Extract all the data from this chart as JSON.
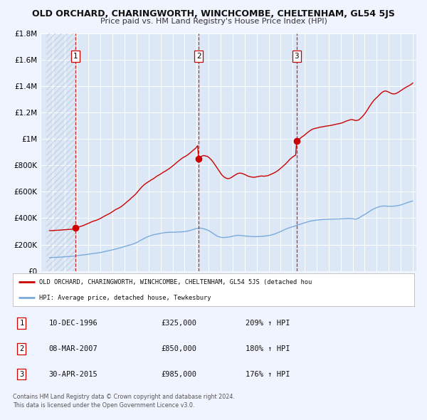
{
  "title": "OLD ORCHARD, CHARINGWORTH, WINCHCOMBE, CHELTENHAM, GL54 5JS",
  "subtitle": "Price paid vs. HM Land Registry's House Price Index (HPI)",
  "background_color": "#f0f4ff",
  "plot_bg_color": "#dce8f5",
  "grid_color": "#ffffff",
  "ylim": [
    0,
    1800000
  ],
  "yticks": [
    0,
    200000,
    400000,
    600000,
    800000,
    1000000,
    1200000,
    1400000,
    1600000,
    1800000
  ],
  "ytick_labels": [
    "£0",
    "£200K",
    "£400K",
    "£600K",
    "£800K",
    "£1M",
    "£1.2M",
    "£1.4M",
    "£1.6M",
    "£1.8M"
  ],
  "sale_color": "#cc0000",
  "hpi_color": "#7aaadd",
  "sale_label": "OLD ORCHARD, CHARINGWORTH, WINCHCOMBE, CHELTENHAM, GL54 5JS (detached hou",
  "hpi_label": "HPI: Average price, detached house, Tewkesbury",
  "marker_color": "#cc0000",
  "dashed_line_color": "#cc0000",
  "sale_positions": [
    [
      1996.917,
      325000,
      "1"
    ],
    [
      2007.167,
      850000,
      "2"
    ],
    [
      2015.333,
      985000,
      "3"
    ]
  ],
  "table_rows": [
    {
      "num": "1",
      "date": "10-DEC-1996",
      "price": "£325,000",
      "hpi": "209% ↑ HPI"
    },
    {
      "num": "2",
      "date": "08-MAR-2007",
      "price": "£850,000",
      "hpi": "180% ↑ HPI"
    },
    {
      "num": "3",
      "date": "30-APR-2015",
      "price": "£985,000",
      "hpi": "176% ↑ HPI"
    }
  ],
  "footer_line1": "Contains HM Land Registry data © Crown copyright and database right 2024.",
  "footer_line2": "This data is licensed under the Open Government Licence v3.0.",
  "hpi_curve": [
    [
      1994.75,
      100000
    ],
    [
      1995.0,
      102000
    ],
    [
      1995.25,
      103000
    ],
    [
      1995.5,
      104000
    ],
    [
      1995.75,
      105000
    ],
    [
      1996.0,
      107000
    ],
    [
      1996.25,
      109000
    ],
    [
      1996.5,
      110000
    ],
    [
      1996.75,
      112000
    ],
    [
      1997.0,
      115000
    ],
    [
      1997.25,
      118000
    ],
    [
      1997.5,
      121000
    ],
    [
      1997.75,
      123000
    ],
    [
      1998.0,
      127000
    ],
    [
      1998.25,
      130000
    ],
    [
      1998.5,
      133000
    ],
    [
      1998.75,
      136000
    ],
    [
      1999.0,
      140000
    ],
    [
      1999.25,
      145000
    ],
    [
      1999.5,
      150000
    ],
    [
      1999.75,
      155000
    ],
    [
      2000.0,
      160000
    ],
    [
      2000.25,
      166000
    ],
    [
      2000.5,
      172000
    ],
    [
      2000.75,
      178000
    ],
    [
      2001.0,
      185000
    ],
    [
      2001.25,
      192000
    ],
    [
      2001.5,
      198000
    ],
    [
      2001.75,
      205000
    ],
    [
      2002.0,
      215000
    ],
    [
      2002.25,
      228000
    ],
    [
      2002.5,
      240000
    ],
    [
      2002.75,
      252000
    ],
    [
      2003.0,
      262000
    ],
    [
      2003.25,
      270000
    ],
    [
      2003.5,
      276000
    ],
    [
      2003.75,
      280000
    ],
    [
      2004.0,
      285000
    ],
    [
      2004.25,
      289000
    ],
    [
      2004.5,
      292000
    ],
    [
      2004.75,
      293000
    ],
    [
      2005.0,
      293000
    ],
    [
      2005.25,
      294000
    ],
    [
      2005.5,
      295000
    ],
    [
      2005.75,
      296000
    ],
    [
      2006.0,
      298000
    ],
    [
      2006.25,
      302000
    ],
    [
      2006.5,
      308000
    ],
    [
      2006.75,
      315000
    ],
    [
      2007.0,
      322000
    ],
    [
      2007.25,
      325000
    ],
    [
      2007.5,
      322000
    ],
    [
      2007.75,
      315000
    ],
    [
      2008.0,
      306000
    ],
    [
      2008.25,
      292000
    ],
    [
      2008.5,
      276000
    ],
    [
      2008.75,
      262000
    ],
    [
      2009.0,
      255000
    ],
    [
      2009.25,
      253000
    ],
    [
      2009.5,
      255000
    ],
    [
      2009.75,
      258000
    ],
    [
      2010.0,
      263000
    ],
    [
      2010.25,
      268000
    ],
    [
      2010.5,
      270000
    ],
    [
      2010.75,
      268000
    ],
    [
      2011.0,
      265000
    ],
    [
      2011.25,
      263000
    ],
    [
      2011.5,
      261000
    ],
    [
      2011.75,
      260000
    ],
    [
      2012.0,
      260000
    ],
    [
      2012.25,
      261000
    ],
    [
      2012.5,
      263000
    ],
    [
      2012.75,
      265000
    ],
    [
      2013.0,
      268000
    ],
    [
      2013.25,
      273000
    ],
    [
      2013.5,
      280000
    ],
    [
      2013.75,
      289000
    ],
    [
      2014.0,
      299000
    ],
    [
      2014.25,
      310000
    ],
    [
      2014.5,
      320000
    ],
    [
      2014.75,
      328000
    ],
    [
      2015.0,
      335000
    ],
    [
      2015.25,
      342000
    ],
    [
      2015.5,
      350000
    ],
    [
      2015.75,
      358000
    ],
    [
      2016.0,
      365000
    ],
    [
      2016.25,
      372000
    ],
    [
      2016.5,
      378000
    ],
    [
      2016.75,
      382000
    ],
    [
      2017.0,
      385000
    ],
    [
      2017.25,
      388000
    ],
    [
      2017.5,
      390000
    ],
    [
      2017.75,
      391000
    ],
    [
      2018.0,
      392000
    ],
    [
      2018.25,
      393000
    ],
    [
      2018.5,
      394000
    ],
    [
      2018.75,
      394000
    ],
    [
      2019.0,
      395000
    ],
    [
      2019.25,
      396000
    ],
    [
      2019.5,
      397000
    ],
    [
      2019.75,
      398000
    ],
    [
      2020.0,
      396000
    ],
    [
      2020.25,
      392000
    ],
    [
      2020.5,
      400000
    ],
    [
      2020.75,
      415000
    ],
    [
      2021.0,
      428000
    ],
    [
      2021.25,
      442000
    ],
    [
      2021.5,
      458000
    ],
    [
      2021.75,
      470000
    ],
    [
      2022.0,
      480000
    ],
    [
      2022.25,
      488000
    ],
    [
      2022.5,
      492000
    ],
    [
      2022.75,
      492000
    ],
    [
      2023.0,
      490000
    ],
    [
      2023.25,
      490000
    ],
    [
      2023.5,
      492000
    ],
    [
      2023.75,
      495000
    ],
    [
      2024.0,
      500000
    ],
    [
      2024.25,
      508000
    ],
    [
      2024.5,
      516000
    ],
    [
      2024.75,
      524000
    ],
    [
      2025.0,
      530000
    ]
  ],
  "red_curve": [
    [
      1994.75,
      305000
    ],
    [
      1994.917,
      306000
    ],
    [
      1995.083,
      307500
    ],
    [
      1995.25,
      308000
    ],
    [
      1995.417,
      308500
    ],
    [
      1995.583,
      309000
    ],
    [
      1995.75,
      310000
    ],
    [
      1995.917,
      312000
    ],
    [
      1996.083,
      313000
    ],
    [
      1996.25,
      314000
    ],
    [
      1996.417,
      315000
    ],
    [
      1996.583,
      316000
    ],
    [
      1996.75,
      318000
    ],
    [
      1996.917,
      325000
    ],
    [
      1997.083,
      328000
    ],
    [
      1997.25,
      335000
    ],
    [
      1997.417,
      340000
    ],
    [
      1997.583,
      345000
    ],
    [
      1997.75,
      352000
    ],
    [
      1997.917,
      358000
    ],
    [
      1998.083,
      365000
    ],
    [
      1998.25,
      372000
    ],
    [
      1998.417,
      378000
    ],
    [
      1998.583,
      382000
    ],
    [
      1998.75,
      388000
    ],
    [
      1998.917,
      395000
    ],
    [
      1999.083,
      403000
    ],
    [
      1999.25,
      412000
    ],
    [
      1999.417,
      420000
    ],
    [
      1999.583,
      428000
    ],
    [
      1999.75,
      435000
    ],
    [
      1999.917,
      445000
    ],
    [
      2000.083,
      455000
    ],
    [
      2000.25,
      465000
    ],
    [
      2000.417,
      472000
    ],
    [
      2000.583,
      480000
    ],
    [
      2000.75,
      490000
    ],
    [
      2000.917,
      502000
    ],
    [
      2001.083,
      515000
    ],
    [
      2001.25,
      528000
    ],
    [
      2001.417,
      540000
    ],
    [
      2001.583,
      555000
    ],
    [
      2001.75,
      568000
    ],
    [
      2001.917,
      582000
    ],
    [
      2002.083,
      600000
    ],
    [
      2002.25,
      618000
    ],
    [
      2002.417,
      635000
    ],
    [
      2002.583,
      650000
    ],
    [
      2002.75,
      662000
    ],
    [
      2002.917,
      672000
    ],
    [
      2003.083,
      682000
    ],
    [
      2003.25,
      692000
    ],
    [
      2003.417,
      700000
    ],
    [
      2003.583,
      712000
    ],
    [
      2003.75,
      722000
    ],
    [
      2003.917,
      730000
    ],
    [
      2004.083,
      740000
    ],
    [
      2004.25,
      750000
    ],
    [
      2004.417,
      758000
    ],
    [
      2004.583,
      768000
    ],
    [
      2004.75,
      778000
    ],
    [
      2004.917,
      790000
    ],
    [
      2005.083,
      802000
    ],
    [
      2005.25,
      815000
    ],
    [
      2005.417,
      828000
    ],
    [
      2005.583,
      840000
    ],
    [
      2005.75,
      852000
    ],
    [
      2005.917,
      862000
    ],
    [
      2006.083,
      870000
    ],
    [
      2006.25,
      880000
    ],
    [
      2006.417,
      892000
    ],
    [
      2006.583,
      905000
    ],
    [
      2006.75,
      918000
    ],
    [
      2006.917,
      930000
    ],
    [
      2007.0,
      940000
    ],
    [
      2007.083,
      950000
    ],
    [
      2007.167,
      850000
    ],
    [
      2007.25,
      855000
    ],
    [
      2007.417,
      870000
    ],
    [
      2007.583,
      875000
    ],
    [
      2007.75,
      872000
    ],
    [
      2007.917,
      868000
    ],
    [
      2008.083,
      855000
    ],
    [
      2008.25,
      840000
    ],
    [
      2008.417,
      820000
    ],
    [
      2008.583,
      798000
    ],
    [
      2008.75,
      775000
    ],
    [
      2008.917,
      752000
    ],
    [
      2009.083,
      730000
    ],
    [
      2009.25,
      715000
    ],
    [
      2009.417,
      705000
    ],
    [
      2009.583,
      700000
    ],
    [
      2009.75,
      702000
    ],
    [
      2009.917,
      710000
    ],
    [
      2010.083,
      720000
    ],
    [
      2010.25,
      730000
    ],
    [
      2010.417,
      738000
    ],
    [
      2010.583,
      742000
    ],
    [
      2010.75,
      740000
    ],
    [
      2010.917,
      735000
    ],
    [
      2011.083,
      728000
    ],
    [
      2011.25,
      720000
    ],
    [
      2011.417,
      715000
    ],
    [
      2011.583,
      712000
    ],
    [
      2011.75,
      710000
    ],
    [
      2011.917,
      712000
    ],
    [
      2012.083,
      715000
    ],
    [
      2012.25,
      718000
    ],
    [
      2012.417,
      720000
    ],
    [
      2012.583,
      718000
    ],
    [
      2012.75,
      720000
    ],
    [
      2012.917,
      722000
    ],
    [
      2013.083,
      728000
    ],
    [
      2013.25,
      735000
    ],
    [
      2013.417,
      742000
    ],
    [
      2013.583,
      750000
    ],
    [
      2013.75,
      760000
    ],
    [
      2013.917,
      772000
    ],
    [
      2014.083,
      785000
    ],
    [
      2014.25,
      798000
    ],
    [
      2014.417,
      812000
    ],
    [
      2014.583,
      828000
    ],
    [
      2014.75,
      845000
    ],
    [
      2014.917,
      858000
    ],
    [
      2015.083,
      870000
    ],
    [
      2015.25,
      878000
    ],
    [
      2015.333,
      985000
    ],
    [
      2015.5,
      995000
    ],
    [
      2015.667,
      1008000
    ],
    [
      2015.75,
      1015000
    ],
    [
      2015.917,
      1025000
    ],
    [
      2016.083,
      1038000
    ],
    [
      2016.25,
      1050000
    ],
    [
      2016.417,
      1062000
    ],
    [
      2016.583,
      1072000
    ],
    [
      2016.75,
      1078000
    ],
    [
      2016.917,
      1082000
    ],
    [
      2017.083,
      1085000
    ],
    [
      2017.25,
      1090000
    ],
    [
      2017.417,
      1092000
    ],
    [
      2017.583,
      1095000
    ],
    [
      2017.75,
      1098000
    ],
    [
      2017.917,
      1100000
    ],
    [
      2018.083,
      1102000
    ],
    [
      2018.25,
      1105000
    ],
    [
      2018.417,
      1108000
    ],
    [
      2018.583,
      1112000
    ],
    [
      2018.75,
      1115000
    ],
    [
      2018.917,
      1118000
    ],
    [
      2019.083,
      1122000
    ],
    [
      2019.25,
      1128000
    ],
    [
      2019.417,
      1135000
    ],
    [
      2019.583,
      1140000
    ],
    [
      2019.75,
      1145000
    ],
    [
      2019.917,
      1148000
    ],
    [
      2020.083,
      1145000
    ],
    [
      2020.25,
      1140000
    ],
    [
      2020.5,
      1145000
    ],
    [
      2020.75,
      1165000
    ],
    [
      2020.917,
      1182000
    ],
    [
      2021.083,
      1202000
    ],
    [
      2021.25,
      1225000
    ],
    [
      2021.417,
      1250000
    ],
    [
      2021.583,
      1272000
    ],
    [
      2021.75,
      1292000
    ],
    [
      2021.917,
      1308000
    ],
    [
      2022.083,
      1322000
    ],
    [
      2022.25,
      1338000
    ],
    [
      2022.417,
      1352000
    ],
    [
      2022.583,
      1362000
    ],
    [
      2022.75,
      1365000
    ],
    [
      2022.917,
      1360000
    ],
    [
      2023.083,
      1352000
    ],
    [
      2023.25,
      1345000
    ],
    [
      2023.417,
      1342000
    ],
    [
      2023.583,
      1345000
    ],
    [
      2023.75,
      1352000
    ],
    [
      2023.917,
      1362000
    ],
    [
      2024.083,
      1372000
    ],
    [
      2024.25,
      1382000
    ],
    [
      2024.417,
      1392000
    ],
    [
      2024.583,
      1400000
    ],
    [
      2024.75,
      1408000
    ],
    [
      2024.917,
      1418000
    ],
    [
      2025.0,
      1425000
    ]
  ]
}
